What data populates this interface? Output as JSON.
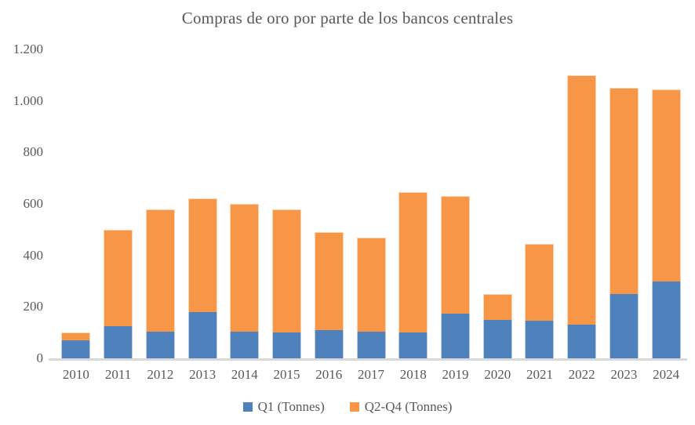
{
  "title": "Compras de oro por parte de los bancos centrales",
  "colors": {
    "q1_fill": "#4F81BD",
    "q1_border": "#B8CCE4",
    "q2q4_fill": "#F79646",
    "q2q4_border": "#FCD5B4",
    "axis_line": "#D9D9D9",
    "text": "#595959"
  },
  "y_axis": {
    "tick_labels": [
      "1.200",
      "1.000",
      "800",
      "600",
      "400",
      "200",
      "0"
    ],
    "tick_values": [
      1200,
      1000,
      800,
      600,
      400,
      200,
      0
    ],
    "max": 1200,
    "min": 0,
    "step": 200
  },
  "legend": {
    "items": [
      {
        "label": "Q1 (Tonnes)",
        "color": "#4F81BD"
      },
      {
        "label": "Q2-Q4 (Tonnes)",
        "color": "#F79646"
      }
    ]
  },
  "chart_data": {
    "type": "bar",
    "stacked": true,
    "title": "Compras de oro por parte de los bancos centrales",
    "xlabel": "",
    "ylabel": "",
    "ylim": [
      0,
      1200
    ],
    "grid": false,
    "legend_position": "bottom",
    "categories": [
      "2010",
      "2011",
      "2012",
      "2013",
      "2014",
      "2015",
      "2016",
      "2017",
      "2018",
      "2019",
      "2020",
      "2021",
      "2022",
      "2023",
      "2024"
    ],
    "series": [
      {
        "name": "Q1 (Tonnes)",
        "color": "#4F81BD",
        "values": [
          70,
          125,
          105,
          180,
          105,
          100,
          110,
          105,
          100,
          175,
          150,
          145,
          130,
          250,
          300
        ]
      },
      {
        "name": "Q2-Q4 (Tonnes)",
        "color": "#F79646",
        "values": [
          30,
          375,
          475,
          440,
          495,
          480,
          380,
          365,
          545,
          455,
          100,
          300,
          970,
          800,
          745
        ]
      }
    ],
    "totals": [
      100,
      500,
      580,
      620,
      600,
      580,
      490,
      470,
      645,
      630,
      250,
      445,
      1100,
      1050,
      1045
    ]
  }
}
